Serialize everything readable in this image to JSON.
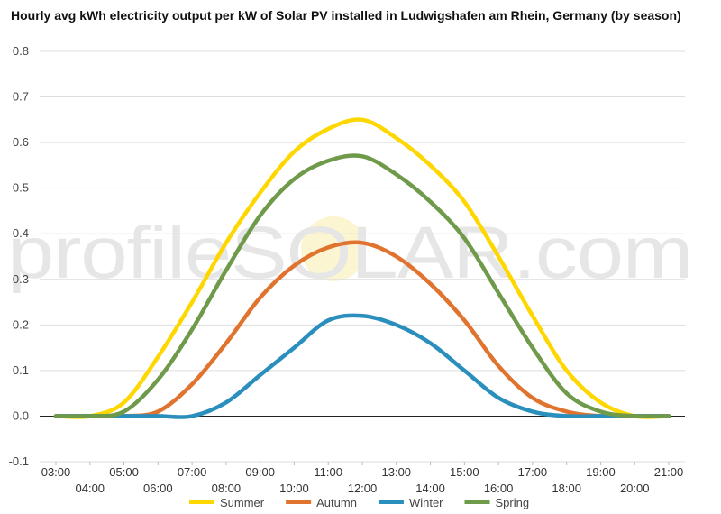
{
  "chart_data": {
    "type": "line",
    "title": "Hourly avg kWh electricity output per kW of Solar PV installed in Ludwigshafen am Rhein, Germany (by season)",
    "watermark": "profileSOLAR.com",
    "x": [
      "03:00",
      "04:00",
      "05:00",
      "06:00",
      "07:00",
      "08:00",
      "09:00",
      "10:00",
      "11:00",
      "12:00",
      "13:00",
      "14:00",
      "15:00",
      "16:00",
      "17:00",
      "18:00",
      "19:00",
      "20:00",
      "21:00"
    ],
    "ylim": [
      -0.1,
      0.8
    ],
    "yticks": [
      "-0.1",
      "0.0",
      "0.1",
      "0.2",
      "0.3",
      "0.4",
      "0.5",
      "0.6",
      "0.7",
      "0.8"
    ],
    "grid": true,
    "legend_position": "bottom",
    "series": [
      {
        "name": "Summer",
        "color": "#ffd700",
        "values": [
          0,
          0,
          0.03,
          0.13,
          0.25,
          0.38,
          0.49,
          0.58,
          0.63,
          0.65,
          0.61,
          0.55,
          0.47,
          0.35,
          0.22,
          0.1,
          0.03,
          0,
          0
        ]
      },
      {
        "name": "Autumn",
        "color": "#e0732e",
        "values": [
          0,
          0,
          0,
          0.01,
          0.07,
          0.16,
          0.26,
          0.33,
          0.37,
          0.38,
          0.35,
          0.29,
          0.21,
          0.11,
          0.04,
          0.01,
          0,
          0,
          0
        ]
      },
      {
        "name": "Winter",
        "color": "#2b8fbe",
        "values": [
          0,
          0,
          0,
          0,
          0,
          0.03,
          0.09,
          0.15,
          0.21,
          0.22,
          0.2,
          0.16,
          0.1,
          0.04,
          0.01,
          0,
          0,
          0,
          0
        ]
      },
      {
        "name": "Spring",
        "color": "#6e9a4a",
        "values": [
          0,
          0,
          0.01,
          0.08,
          0.19,
          0.32,
          0.44,
          0.52,
          0.56,
          0.57,
          0.53,
          0.47,
          0.39,
          0.27,
          0.15,
          0.05,
          0.01,
          0,
          0
        ]
      }
    ]
  }
}
